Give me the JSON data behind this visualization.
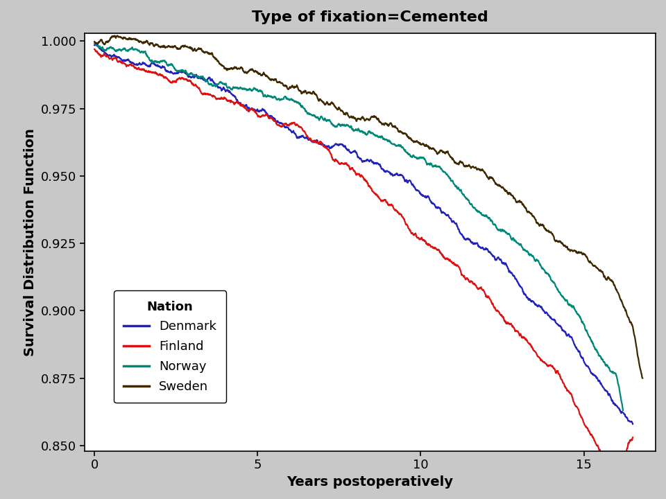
{
  "title": "Type of fixation=Cemented",
  "xlabel": "Years postoperatively",
  "ylabel": "Survival Distribution Function",
  "xlim": [
    -0.3,
    17.2
  ],
  "ylim": [
    0.848,
    1.003
  ],
  "yticks": [
    0.85,
    0.875,
    0.9,
    0.925,
    0.95,
    0.975,
    1.0
  ],
  "xticks": [
    0,
    5,
    10,
    15
  ],
  "background_color": "#c8c8c8",
  "plot_bg_color": "#ffffff",
  "nations": [
    "Denmark",
    "Finland",
    "Norway",
    "Sweden"
  ],
  "colors": {
    "Denmark": "#2222bb",
    "Finland": "#dd1111",
    "Norway": "#008877",
    "Sweden": "#3d2800"
  },
  "curves": {
    "Denmark": {
      "x": [
        0,
        1,
        2,
        3,
        4,
        5,
        6,
        7,
        8,
        9,
        10,
        11,
        12,
        13,
        14,
        15,
        15.5,
        16,
        16.5
      ],
      "y": [
        0.9985,
        0.996,
        0.993,
        0.9895,
        0.9855,
        0.981,
        0.9755,
        0.9695,
        0.9625,
        0.9545,
        0.9455,
        0.935,
        0.9235,
        0.9105,
        0.8965,
        0.8815,
        0.874,
        0.866,
        0.858
      ]
    },
    "Finland": {
      "x": [
        0,
        1,
        2,
        3,
        4,
        5,
        6,
        7,
        8,
        9,
        10,
        11,
        12,
        13,
        14,
        15,
        15.5,
        16,
        16.5
      ],
      "y": [
        0.997,
        0.9935,
        0.9893,
        0.9845,
        0.979,
        0.9728,
        0.9658,
        0.958,
        0.9492,
        0.9395,
        0.9288,
        0.9168,
        0.9038,
        0.8895,
        0.8745,
        0.8582,
        0.8492,
        0.84,
        0.853
      ]
    },
    "Norway": {
      "x": [
        0,
        1,
        2,
        3,
        4,
        5,
        6,
        7,
        8,
        9,
        10,
        11,
        12,
        13,
        14,
        15,
        15.5,
        16,
        16.2
      ],
      "y": [
        0.9992,
        0.9972,
        0.9947,
        0.9917,
        0.9882,
        0.9842,
        0.9796,
        0.9743,
        0.9682,
        0.9613,
        0.9534,
        0.9443,
        0.934,
        0.9222,
        0.9088,
        0.894,
        0.8862,
        0.8775,
        0.863
      ]
    },
    "Sweden": {
      "x": [
        0,
        1,
        2,
        3,
        4,
        5,
        6,
        7,
        8,
        9,
        10,
        11,
        12,
        13,
        14,
        15,
        15.5,
        16,
        16.5,
        16.8
      ],
      "y": [
        0.9998,
        0.9985,
        0.9968,
        0.9947,
        0.9922,
        0.9893,
        0.9859,
        0.982,
        0.9776,
        0.9725,
        0.9668,
        0.9603,
        0.9529,
        0.9445,
        0.935,
        0.9244,
        0.9185,
        0.912,
        0.896,
        0.875
      ]
    }
  },
  "title_fontsize": 16,
  "axis_label_fontsize": 14,
  "tick_fontsize": 13,
  "legend_title_fontsize": 13,
  "legend_fontsize": 13
}
